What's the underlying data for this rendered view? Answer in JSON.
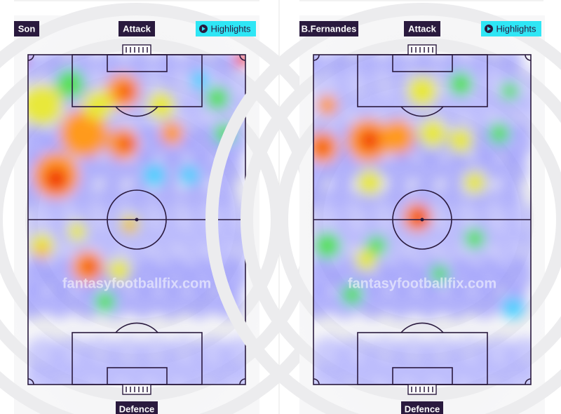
{
  "panels": [
    {
      "player": "Son",
      "top_label": "Attack",
      "button": "Highlights",
      "bottom_label": "Defence",
      "watermark": "fantasyfootballfix.com"
    },
    {
      "player": "B.Fernandes",
      "top_label": "Attack",
      "button": "Highlights",
      "bottom_label": "Defence",
      "watermark": "fantasyfootballfix.com"
    }
  ]
}
